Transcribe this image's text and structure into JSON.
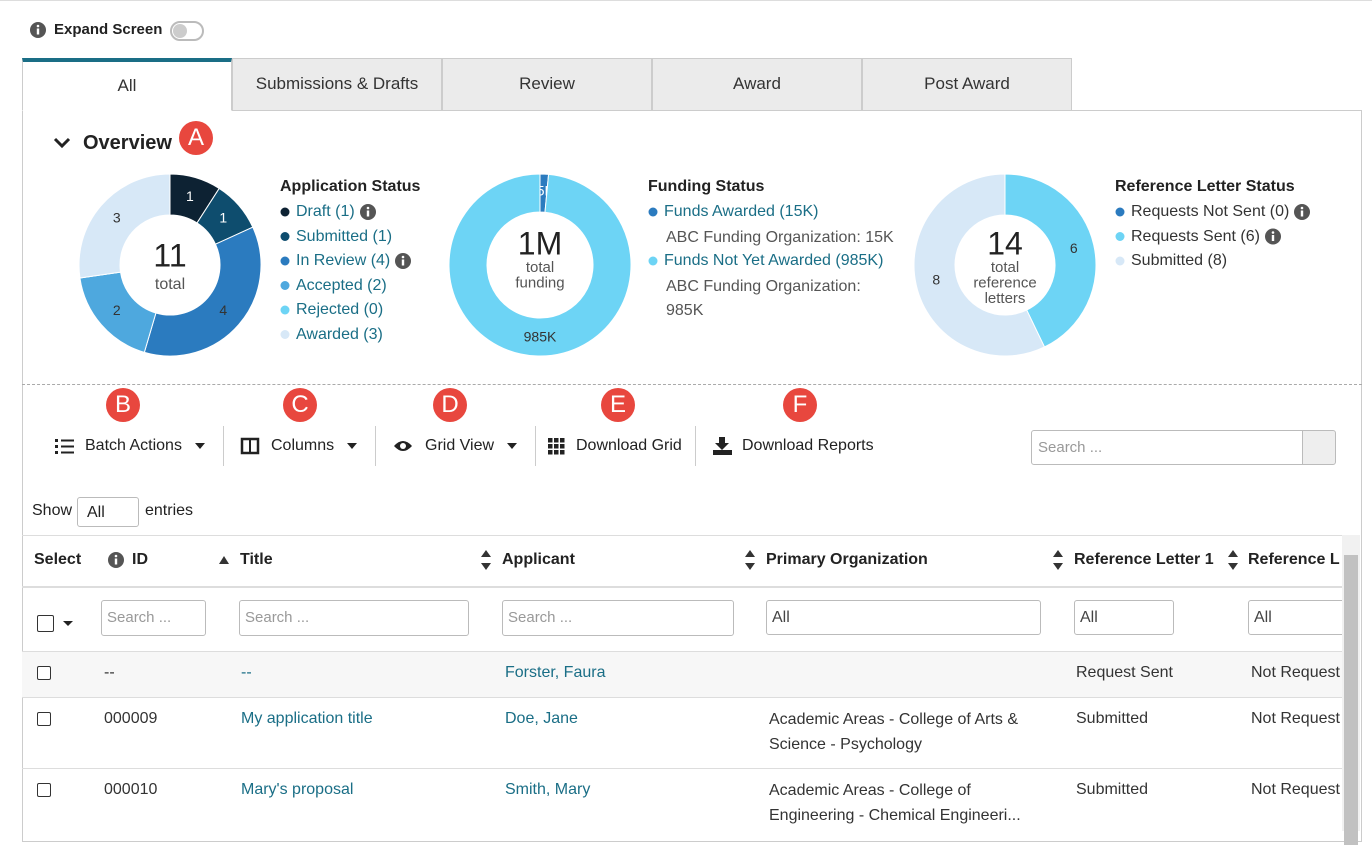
{
  "expand_screen": "Expand Screen",
  "tabs": [
    "All",
    "Submissions & Drafts",
    "Review",
    "Award",
    "Post Award"
  ],
  "overview": {
    "title": "Overview",
    "charts": [
      {
        "type": "pie",
        "title": "Application Status",
        "categories": [
          "Draft (1)",
          "Submitted (1)",
          "In Review (4)",
          "Accepted (2)",
          "Rejected (0)",
          "Awarded (3)"
        ],
        "values": [
          1,
          1,
          4,
          2,
          0,
          3
        ],
        "colors": [
          "#0d2233",
          "#0e4d6e",
          "#2b7bbf",
          "#4ea8de",
          "#6dd4f5",
          "#d7e8f7"
        ],
        "center": {
          "value": 11
        },
        "center_caption": [
          "total"
        ]
      },
      {
        "type": "pie",
        "title": "Funding Status",
        "categories": [
          "Funds Awarded (15K)",
          "Funds Not Yet Awarded (985K)"
        ],
        "values": [
          15000,
          985000
        ],
        "value_labels": [
          "15K",
          "985K"
        ],
        "details": [
          "ABC Funding Organization: 15K",
          "ABC Funding Organization: 985K"
        ],
        "colors": [
          "#2b7bbf",
          "#6dd4f5"
        ],
        "center": {
          "value": 1000000,
          "label": "1M"
        },
        "center_caption": [
          "total",
          "funding"
        ]
      },
      {
        "type": "pie",
        "title": "Reference Letter Status",
        "categories": [
          "Requests Not Sent (0)",
          "Requests Sent (6)",
          "Submitted (8)"
        ],
        "values": [
          0,
          6,
          8
        ],
        "colors": [
          "#2b7bbf",
          "#6dd4f5",
          "#d7e8f7"
        ],
        "center": {
          "value": 14
        },
        "center_caption": [
          "total",
          "reference",
          "letters"
        ]
      }
    ]
  },
  "badges": [
    "A",
    "B",
    "C",
    "D",
    "E",
    "F"
  ],
  "toolbar": [
    "Batch Actions",
    "Columns",
    "Grid View",
    "Download Grid",
    "Download Reports"
  ],
  "search_placeholder": "Search ...",
  "show": {
    "before": "Show",
    "selected": "All",
    "after": "entries"
  },
  "table": {
    "headers": [
      "Select",
      "ID",
      "Title",
      "Applicant",
      "Primary Organization",
      "Reference Letter 1",
      "Reference L"
    ],
    "filters": {
      "id": "Search ...",
      "title": "Search ...",
      "applicant": "Search ...",
      "organization": "All",
      "reference_letter_1": "All",
      "reference_letter_2": "All"
    },
    "rows": [
      {
        "id": "--",
        "title": "--",
        "applicant": "Forster, Faura",
        "reference_letter_1": "Request Sent",
        "reference_letter_2": "Not Request"
      },
      {
        "id": "000009",
        "title": "My application title",
        "applicant": "Doe, Jane",
        "organization": "Academic Areas - College of Arts & Science - Psychology",
        "reference_letter_1": "Submitted",
        "reference_letter_2": "Not Request"
      },
      {
        "id": "000010",
        "title": "Mary's proposal",
        "applicant": "Smith, Mary",
        "organization": "Academic Areas - College of Engineering - Chemical Engineeri...",
        "reference_letter_1": "Submitted",
        "reference_letter_2": "Not Request"
      }
    ]
  }
}
